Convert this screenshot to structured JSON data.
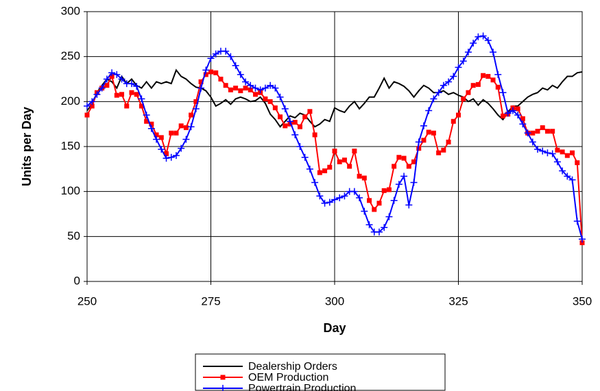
{
  "chart_data": {
    "type": "line",
    "x_label": "Day",
    "y_label": "Units per Day",
    "x": [
      250,
      251,
      252,
      253,
      254,
      255,
      256,
      257,
      258,
      259,
      260,
      261,
      262,
      263,
      264,
      265,
      266,
      267,
      268,
      269,
      270,
      271,
      272,
      273,
      274,
      275,
      276,
      277,
      278,
      279,
      280,
      281,
      282,
      283,
      284,
      285,
      286,
      287,
      288,
      289,
      290,
      291,
      292,
      293,
      294,
      295,
      296,
      297,
      298,
      299,
      300,
      301,
      302,
      303,
      304,
      305,
      306,
      307,
      308,
      309,
      310,
      311,
      312,
      313,
      314,
      315,
      316,
      317,
      318,
      319,
      320,
      321,
      322,
      323,
      324,
      325,
      326,
      327,
      328,
      329,
      330,
      331,
      332,
      333,
      334,
      335,
      336,
      337,
      338,
      339,
      340,
      341,
      342,
      343,
      344,
      345,
      346,
      347,
      348,
      349,
      350
    ],
    "series": [
      {
        "name": "Dealership Orders",
        "color": "#000000",
        "marker": "none",
        "values": [
          190,
          197,
          210,
          218,
          225,
          222,
          215,
          228,
          220,
          225,
          218,
          215,
          222,
          215,
          222,
          220,
          222,
          220,
          235,
          228,
          225,
          220,
          216,
          215,
          212,
          205,
          195,
          198,
          202,
          197,
          203,
          205,
          203,
          200,
          201,
          205,
          198,
          186,
          180,
          172,
          178,
          184,
          182,
          187,
          185,
          178,
          172,
          175,
          180,
          178,
          193,
          190,
          188,
          195,
          200,
          192,
          198,
          205,
          205,
          215,
          226,
          215,
          222,
          220,
          217,
          212,
          205,
          212,
          218,
          215,
          210,
          210,
          212,
          208,
          210,
          207,
          205,
          200,
          203,
          196,
          202,
          198,
          192,
          185,
          180,
          188,
          195,
          195,
          200,
          205,
          208,
          210,
          215,
          213,
          218,
          215,
          222,
          228,
          228,
          232,
          233
        ]
      },
      {
        "name": "OEM Production",
        "color": "#ff0000",
        "marker": "square",
        "values": [
          185,
          195,
          210,
          215,
          218,
          228,
          207,
          208,
          195,
          210,
          208,
          195,
          178,
          175,
          163,
          160,
          142,
          165,
          165,
          173,
          171,
          185,
          200,
          222,
          230,
          233,
          232,
          225,
          218,
          213,
          215,
          212,
          215,
          213,
          208,
          210,
          203,
          200,
          193,
          183,
          173,
          175,
          177,
          172,
          183,
          189,
          163,
          121,
          123,
          127,
          145,
          133,
          135,
          128,
          145,
          117,
          115,
          90,
          80,
          87,
          101,
          102,
          128,
          138,
          137,
          128,
          133,
          148,
          157,
          166,
          165,
          143,
          146,
          155,
          178,
          185,
          203,
          210,
          218,
          219,
          229,
          228,
          224,
          216,
          184,
          186,
          193,
          192,
          181,
          165,
          165,
          167,
          171,
          167,
          167,
          146,
          144,
          140,
          143,
          132,
          43
        ]
      },
      {
        "name": "Powertrain Production",
        "color": "#0000ff",
        "marker": "plus",
        "values": [
          195,
          200,
          208,
          215,
          225,
          232,
          230,
          225,
          220,
          220,
          217,
          203,
          185,
          170,
          158,
          147,
          137,
          138,
          140,
          148,
          158,
          172,
          192,
          215,
          235,
          248,
          253,
          256,
          256,
          250,
          240,
          230,
          222,
          218,
          215,
          213,
          215,
          218,
          215,
          205,
          192,
          178,
          163,
          150,
          138,
          125,
          110,
          95,
          87,
          88,
          91,
          93,
          95,
          100,
          100,
          93,
          78,
          63,
          55,
          55,
          60,
          72,
          90,
          108,
          117,
          85,
          110,
          155,
          173,
          190,
          203,
          210,
          218,
          222,
          228,
          238,
          245,
          255,
          265,
          272,
          273,
          268,
          255,
          230,
          210,
          187,
          190,
          185,
          175,
          165,
          155,
          147,
          145,
          143,
          142,
          133,
          123,
          117,
          113,
          67,
          47
        ]
      }
    ],
    "xlim": [
      250,
      350
    ],
    "xticks": [
      250,
      275,
      300,
      325,
      350
    ],
    "ylim": [
      0,
      300
    ],
    "yticks": [
      0,
      50,
      100,
      150,
      200,
      250,
      300
    ],
    "grid": true,
    "legend": "bottom"
  }
}
